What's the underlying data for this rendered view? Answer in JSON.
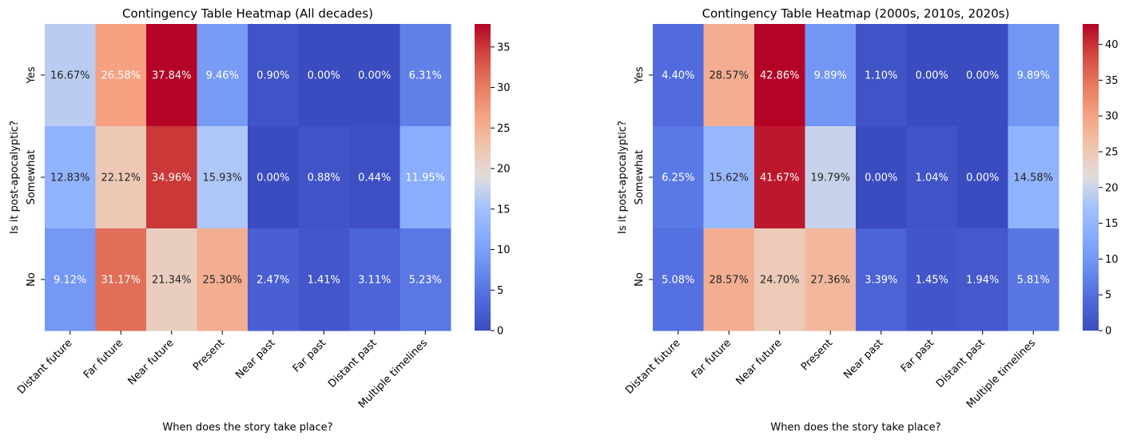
{
  "figure": {
    "panels": [
      "left",
      "right"
    ]
  },
  "chart_data": [
    {
      "type": "heatmap",
      "title": "Contingency Table Heatmap (All decades)",
      "xlabel": "When does the story take place?",
      "ylabel": "Is it post-apocalyptic?",
      "x_categories": [
        "Distant future",
        "Far future",
        "Near future",
        "Present",
        "Near past",
        "Far past",
        "Distant past",
        "Multiple timelines"
      ],
      "y_categories": [
        "Yes",
        "Somewhat",
        "No"
      ],
      "values": [
        [
          16.67,
          26.58,
          37.84,
          9.46,
          0.9,
          0.0,
          0.0,
          6.31
        ],
        [
          12.83,
          22.12,
          34.96,
          15.93,
          0.0,
          0.88,
          0.44,
          11.95
        ],
        [
          9.12,
          31.17,
          21.34,
          25.3,
          2.47,
          1.41,
          3.11,
          5.23
        ]
      ],
      "cell_labels": [
        [
          "16.67%",
          "26.58%",
          "37.84%",
          "9.46%",
          "0.90%",
          "0.00%",
          "0.00%",
          "6.31%"
        ],
        [
          "12.83%",
          "22.12%",
          "34.96%",
          "15.93%",
          "0.00%",
          "0.88%",
          "0.44%",
          "11.95%"
        ],
        [
          "9.12%",
          "31.17%",
          "21.34%",
          "25.30%",
          "2.47%",
          "1.41%",
          "3.11%",
          "5.23%"
        ]
      ],
      "colormap": "coolwarm",
      "colorbar": {
        "vmin": 0,
        "vmax": 37.84,
        "ticks": [
          0,
          5,
          10,
          15,
          20,
          25,
          30,
          35
        ]
      }
    },
    {
      "type": "heatmap",
      "title": "Contingency Table Heatmap (2000s, 2010s, 2020s)",
      "xlabel": "When does the story take place?",
      "ylabel": "Is it post-apocalyptic?",
      "x_categories": [
        "Distant future",
        "Far future",
        "Near future",
        "Present",
        "Near past",
        "Far past",
        "Distant past",
        "Multiple timelines"
      ],
      "y_categories": [
        "Yes",
        "Somewhat",
        "No"
      ],
      "values": [
        [
          4.4,
          28.57,
          42.86,
          9.89,
          1.1,
          0.0,
          0.0,
          9.89
        ],
        [
          6.25,
          15.62,
          41.67,
          19.79,
          0.0,
          1.04,
          0.0,
          14.58
        ],
        [
          5.08,
          28.57,
          24.7,
          27.36,
          3.39,
          1.45,
          1.94,
          5.81
        ]
      ],
      "cell_labels": [
        [
          "4.40%",
          "28.57%",
          "42.86%",
          "9.89%",
          "1.10%",
          "0.00%",
          "0.00%",
          "9.89%"
        ],
        [
          "6.25%",
          "15.62%",
          "41.67%",
          "19.79%",
          "0.00%",
          "1.04%",
          "0.00%",
          "14.58%"
        ],
        [
          "5.08%",
          "28.57%",
          "24.70%",
          "27.36%",
          "3.39%",
          "1.45%",
          "1.94%",
          "5.81%"
        ]
      ],
      "colormap": "coolwarm",
      "colorbar": {
        "vmin": 0,
        "vmax": 42.86,
        "ticks": [
          0,
          5,
          10,
          15,
          20,
          25,
          30,
          35,
          40
        ]
      }
    }
  ]
}
